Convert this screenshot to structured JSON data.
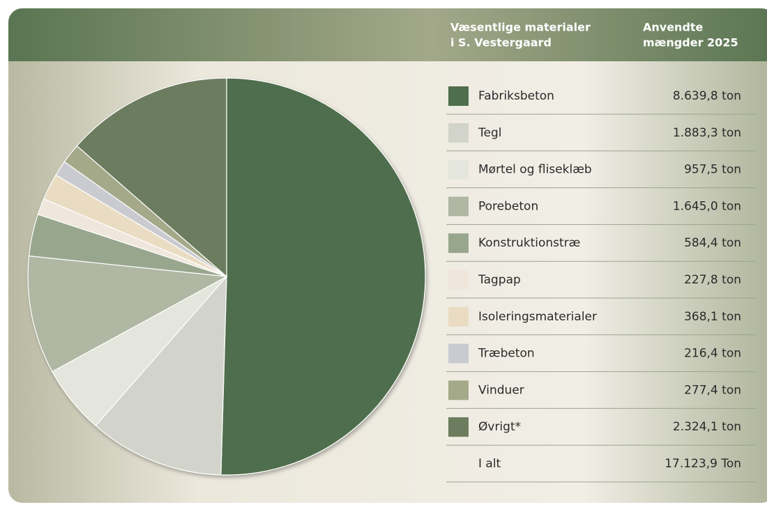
{
  "chart_data": {
    "type": "pie",
    "column_headers": [
      [
        "Væsentlige materialer",
        "i S. Vestergaard"
      ],
      [
        "Anvendte",
        "mængder 2025"
      ]
    ],
    "categories": [
      "Fabriksbeton",
      "Tegl",
      "Mørtel og fliseklæb",
      "Porebeton",
      "Konstruktionstræ",
      "Tagpap",
      "Isoleringsmaterialer",
      "Træbeton",
      "Vinduer",
      "Øvrigt*"
    ],
    "values": [
      8639.8,
      1883.3,
      957.5,
      1645.0,
      584.4,
      227.8,
      368.1,
      216.4,
      277.4,
      2324.1
    ],
    "value_labels": [
      "8.639,8 ton",
      "1.883,3 ton",
      "957,5 ton",
      "1.645,0 ton",
      "584,4 ton",
      "227,8 ton",
      "368,1 ton",
      "216,4 ton",
      "277,4 ton",
      "2.324,1 ton"
    ],
    "colors": [
      "#4f6e4d",
      "#d2d4cb",
      "#e4e5dc",
      "#b0b7a3",
      "#98a68e",
      "#efe6dc",
      "#eadcc3",
      "#c9cbd0",
      "#a4a98a",
      "#6c7c5e"
    ],
    "total": {
      "label": "I alt",
      "value": 17123.9,
      "value_label": "17.123,9 Ton"
    }
  }
}
